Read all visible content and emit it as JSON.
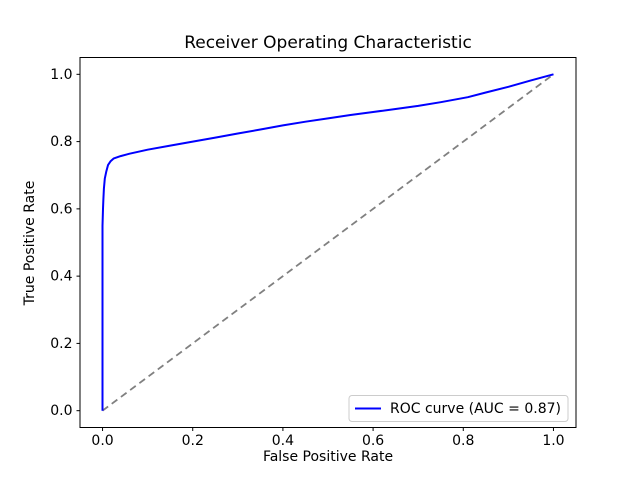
{
  "figure": {
    "background": "#ffffff",
    "spine_color": "#000000",
    "text_color": "#000000"
  },
  "chart_data": {
    "type": "line",
    "title": "Receiver Operating Characteristic",
    "xlabel": "False Positive Rate",
    "ylabel": "True Positive Rate",
    "xlim": [
      -0.05,
      1.05
    ],
    "ylim": [
      -0.05,
      1.05
    ],
    "xticks": [
      0.0,
      0.2,
      0.4,
      0.6,
      0.8,
      1.0
    ],
    "yticks": [
      0.0,
      0.2,
      0.4,
      0.6,
      0.8,
      1.0
    ],
    "xtick_labels": [
      "0.0",
      "0.2",
      "0.4",
      "0.6",
      "0.8",
      "1.0"
    ],
    "ytick_labels": [
      "0.0",
      "0.2",
      "0.4",
      "0.6",
      "0.8",
      "1.0"
    ],
    "grid": false,
    "auc": 0.87,
    "legend": {
      "position": "lower right",
      "entries": [
        {
          "label": "ROC curve (AUC = 0.87)",
          "color": "#0000ff",
          "style": "solid"
        }
      ]
    },
    "series": [
      {
        "name": "ROC curve (AUC = 0.87)",
        "role": "roc-curve",
        "color": "#0000ff",
        "style": "solid",
        "line_width": 2,
        "x": [
          0.0,
          0.0,
          0.001,
          0.002,
          0.003,
          0.005,
          0.008,
          0.012,
          0.018,
          0.025,
          0.04,
          0.06,
          0.08,
          0.1,
          0.15,
          0.2,
          0.25,
          0.3,
          0.35,
          0.4,
          0.45,
          0.5,
          0.55,
          0.6,
          0.65,
          0.7,
          0.75,
          0.81,
          0.85,
          0.9,
          0.95,
          1.0
        ],
        "y": [
          0.0,
          0.55,
          0.6,
          0.63,
          0.66,
          0.69,
          0.71,
          0.73,
          0.742,
          0.75,
          0.757,
          0.764,
          0.77,
          0.776,
          0.788,
          0.8,
          0.812,
          0.824,
          0.836,
          0.848,
          0.859,
          0.869,
          0.879,
          0.888,
          0.897,
          0.906,
          0.917,
          0.932,
          0.946,
          0.963,
          0.982,
          1.0
        ]
      },
      {
        "name": "chance-diagonal",
        "role": "chance-diagonal",
        "color": "#808080",
        "style": "dashed",
        "line_width": 1.8,
        "x": [
          0.0,
          1.0
        ],
        "y": [
          0.0,
          1.0
        ]
      }
    ]
  }
}
